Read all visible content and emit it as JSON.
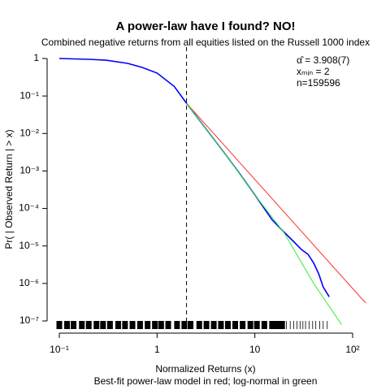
{
  "chart_data": {
    "type": "line",
    "title": "A power-law have I found? NO!",
    "subtitle": "Combined negative returns from all equities listed on the Russell 1000 index",
    "xlabel": "Normalized Returns (x)",
    "ylabel": "Pr( | Observed Return | > x)",
    "caption": "Best-fit power-law model in red; log-normal in green",
    "annotations": [
      "α̂ = 3.908(7)",
      "xₘᵢₙ = 2",
      "n=159596"
    ],
    "log_x": true,
    "log_y": true,
    "xlim": [
      0.1,
      100
    ],
    "ylim": [
      1e-07,
      1
    ],
    "xticks": [
      {
        "value": 0.1,
        "label": "10⁻¹"
      },
      1,
      10,
      {
        "value": 100,
        "label": "10²"
      }
    ],
    "yticks": [
      1,
      {
        "value": 0.1,
        "label": "10⁻¹"
      },
      {
        "value": 0.01,
        "label": "10⁻²"
      },
      {
        "value": 0.001,
        "label": "10⁻³"
      },
      {
        "value": 0.0001,
        "label": "10⁻⁴"
      },
      {
        "value": 1e-05,
        "label": "10⁻⁵"
      },
      {
        "value": 1e-06,
        "label": "10⁻⁶"
      },
      {
        "value": 1e-07,
        "label": "10⁻⁷"
      }
    ],
    "xmin_line": 2,
    "series": [
      {
        "color": "#0000ff",
        "x": [
          0.1,
          0.2,
          0.3,
          0.5,
          0.7,
          1,
          1.5,
          2,
          3,
          5,
          7,
          10,
          15,
          20,
          25,
          30,
          35,
          40,
          45,
          50,
          57.6
        ],
        "values": [
          1,
          0.95,
          0.9,
          0.74,
          0.58,
          0.41,
          0.18,
          0.064,
          0.016,
          0.0028,
          0.00085,
          0.00023,
          5e-05,
          2.3e-05,
          1.3e-05,
          8e-06,
          6e-06,
          3.5e-06,
          1.8e-06,
          8e-07,
          4.4e-07
        ]
      },
      {
        "color": "#ff3030",
        "x": [
          2,
          136
        ],
        "values": [
          0.064,
          3e-07
        ]
      },
      {
        "color": "#33ee33",
        "x": [
          2,
          3,
          5,
          10,
          20,
          40,
          77
        ],
        "values": [
          0.064,
          0.016,
          0.0028,
          0.00023,
          2.2e-05,
          1e-06,
          8e-08
        ]
      }
    ],
    "rug": [
      0.1,
      0.12,
      0.14,
      0.17,
      0.2,
      0.24,
      0.28,
      0.33,
      0.4,
      0.47,
      0.56,
      0.67,
      0.8,
      0.95,
      1.1,
      1.3,
      1.6,
      1.9,
      2.2,
      2.7,
      3.2,
      3.8,
      4.5,
      5.3,
      6.3,
      7.5,
      9,
      10.5,
      12.5,
      15,
      17,
      19,
      21,
      23,
      25,
      27,
      29,
      31,
      33,
      36,
      39,
      42,
      46,
      50,
      55
    ]
  }
}
